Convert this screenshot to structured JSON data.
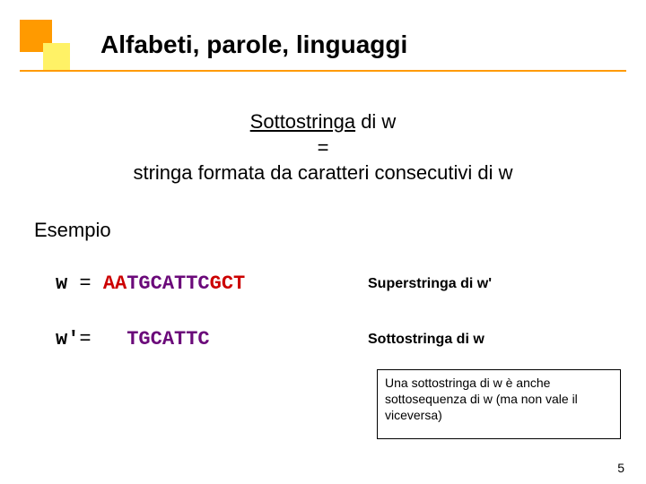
{
  "title": "Alfabeti, parole, linguaggi",
  "definition": {
    "term": "Sottostringa",
    "rest_line1": " di w",
    "eq": "=",
    "line3": "stringa formata da caratteri consecutivi di w"
  },
  "esempio": "Esempio",
  "w": {
    "var": "w ",
    "eq": "= ",
    "pre": "AA",
    "mid": "TGCATTC",
    "post": "GCT",
    "label": "Superstringa di w'"
  },
  "wprime": {
    "var": "w'",
    "eq": "=   ",
    "mid": "TGCATTC",
    "label": "Sottostringa di w"
  },
  "note": "Una sottostringa di w è anche sottosequenza di w (ma non vale il viceversa)",
  "page_num": "5",
  "colors": {
    "orange": "#ff9a00",
    "yellow": "#fff266",
    "red": "#cc0000",
    "purple": "#6b0a7a",
    "shadow": "#c9c9c9"
  }
}
